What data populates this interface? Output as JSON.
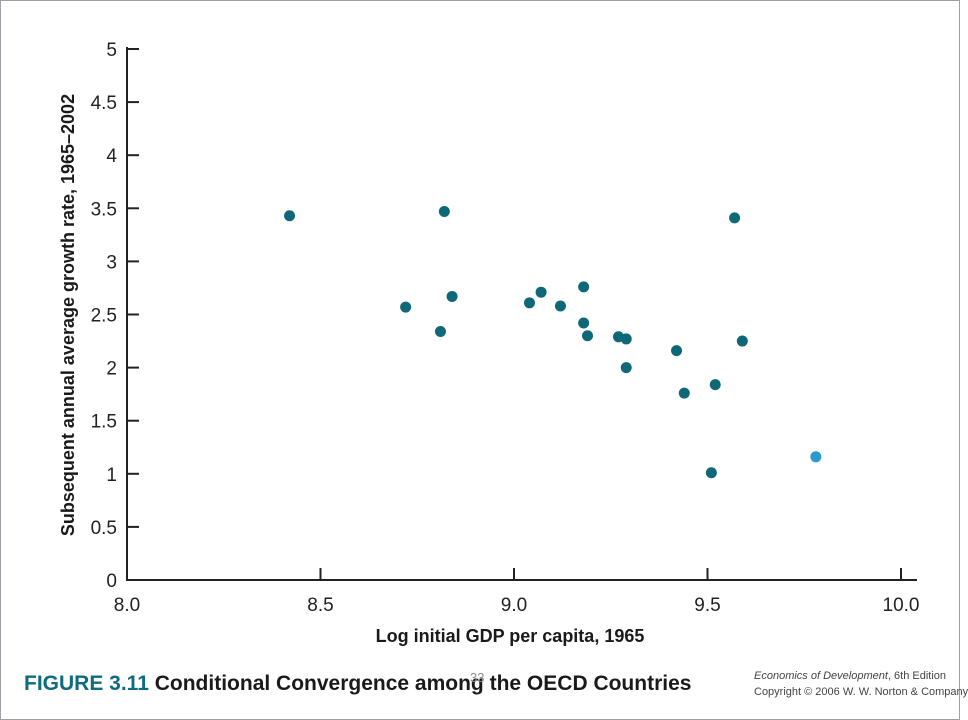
{
  "chart_data": {
    "type": "scatter",
    "title": "",
    "xlabel": "Log initial GDP per capita, 1965",
    "ylabel": "Subsequent annual average growth rate, 1965–2002",
    "xlim": [
      8.0,
      10.0
    ],
    "ylim": [
      0,
      5
    ],
    "x_ticks": [
      "8.0",
      "8.5",
      "9.0",
      "9.5",
      "10.0"
    ],
    "y_ticks": [
      "0",
      "0.5",
      "1",
      "1.5",
      "2",
      "2.5",
      "3",
      "3.5",
      "4",
      "4.5",
      "5"
    ],
    "grid": false,
    "series": [
      {
        "color": "#0e6878",
        "points": [
          [
            8.42,
            3.43
          ],
          [
            8.72,
            2.57
          ],
          [
            8.81,
            2.34
          ],
          [
            8.82,
            3.47
          ],
          [
            8.84,
            2.67
          ],
          [
            9.04,
            2.61
          ],
          [
            9.07,
            2.71
          ],
          [
            9.12,
            2.58
          ],
          [
            9.18,
            2.76
          ],
          [
            9.18,
            2.42
          ],
          [
            9.19,
            2.3
          ],
          [
            9.27,
            2.29
          ],
          [
            9.29,
            2.27
          ],
          [
            9.29,
            2.0
          ],
          [
            9.42,
            2.16
          ],
          [
            9.44,
            1.76
          ],
          [
            9.51,
            1.01
          ],
          [
            9.52,
            1.84
          ],
          [
            9.57,
            3.41
          ],
          [
            9.59,
            2.25
          ]
        ]
      },
      {
        "color": "#2a9bd0",
        "points": [
          [
            9.78,
            1.16
          ]
        ]
      }
    ]
  },
  "caption": {
    "figure_number": "FIGURE 3.11",
    "figure_title": "Conditional Convergence among the OECD Countries"
  },
  "slide_number": "33",
  "credits": {
    "book_title": "Economics of Development",
    "edition": ", 6th Edition",
    "copyright": "Copyright © 2006 W. W. Norton & Company"
  }
}
